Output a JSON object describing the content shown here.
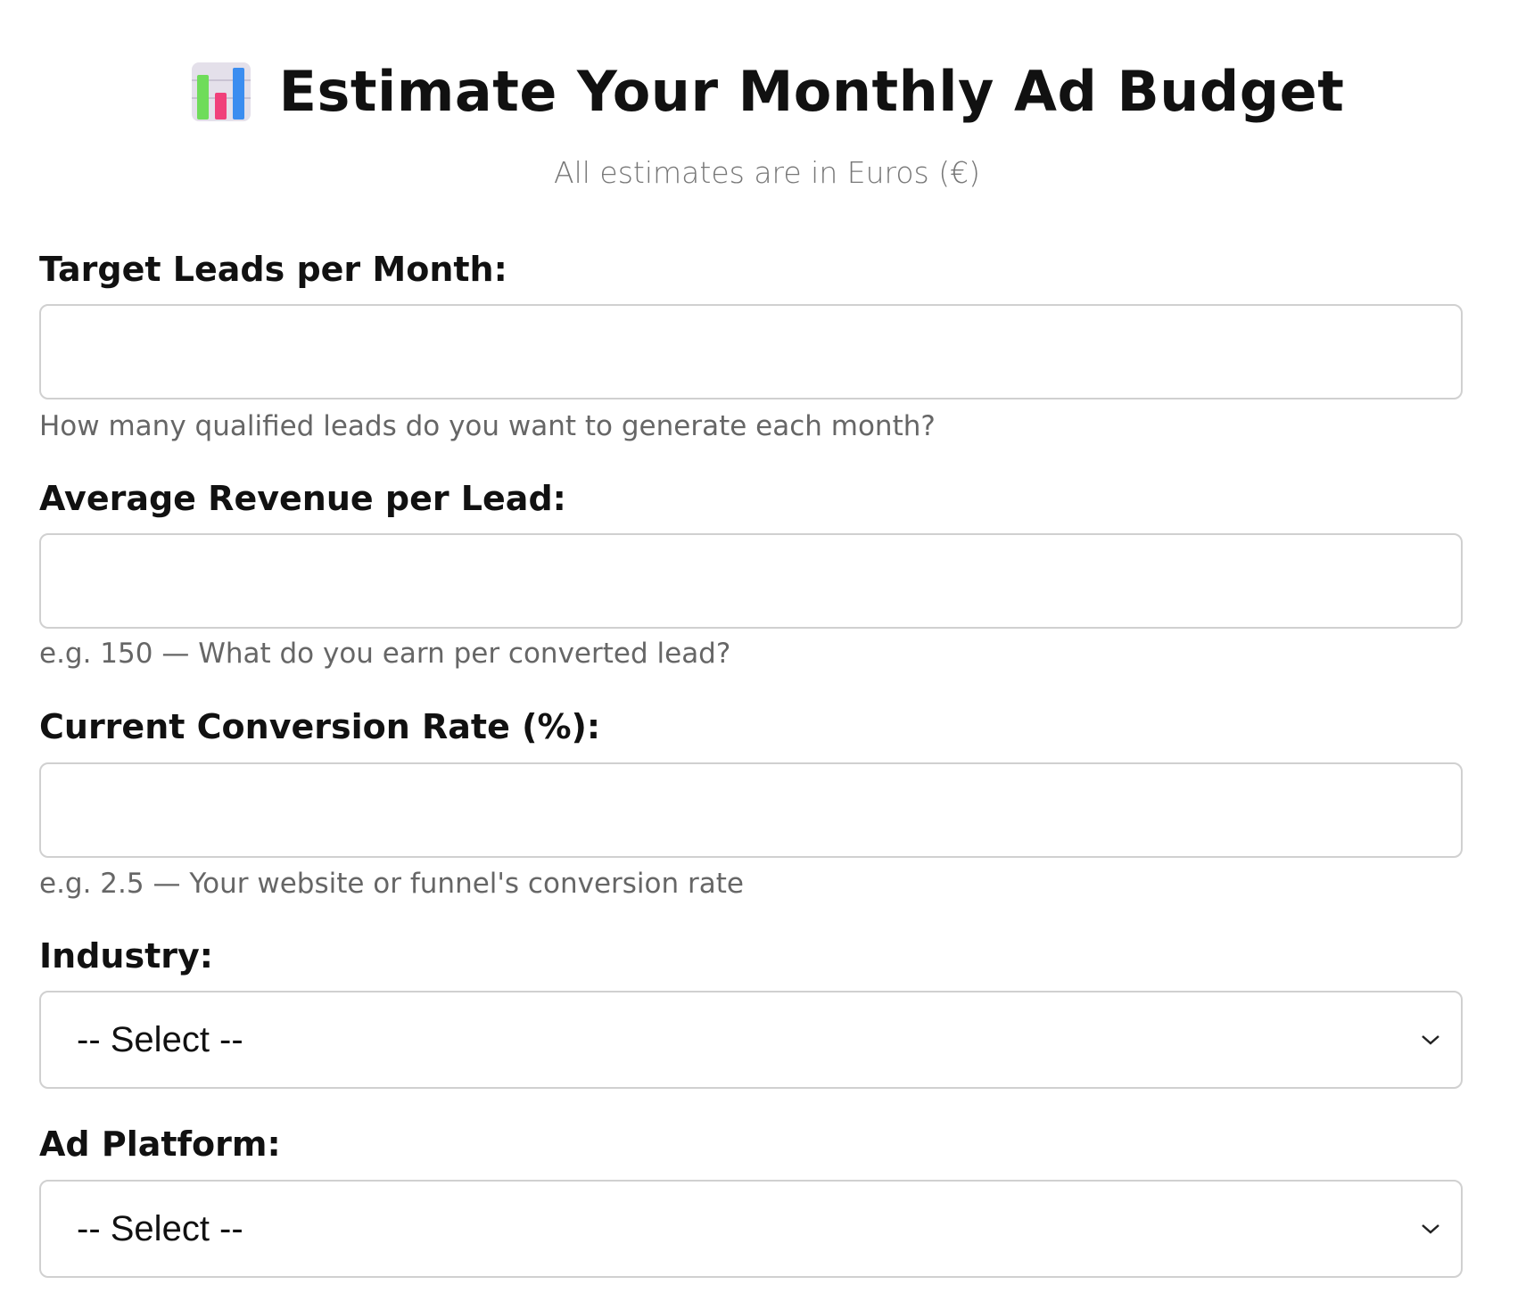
{
  "header": {
    "title": "Estimate Your Monthly Ad Budget",
    "subtitle": "All estimates are in Euros (€)"
  },
  "fields": [
    {
      "label": "Target Leads per Month:",
      "help": "How many qualified leads do you want to generate each month?"
    },
    {
      "label": "Average Revenue per Lead:",
      "help": "e.g. 150 — What do you earn per converted lead?"
    },
    {
      "label": "Current Conversion Rate (%):",
      "help": "e.g. 2.5 — Your website or funnel's conversion rate"
    },
    {
      "label": "Industry:",
      "selected": "-- Select --"
    },
    {
      "label": "Ad Platform:",
      "selected": "-- Select --"
    }
  ]
}
